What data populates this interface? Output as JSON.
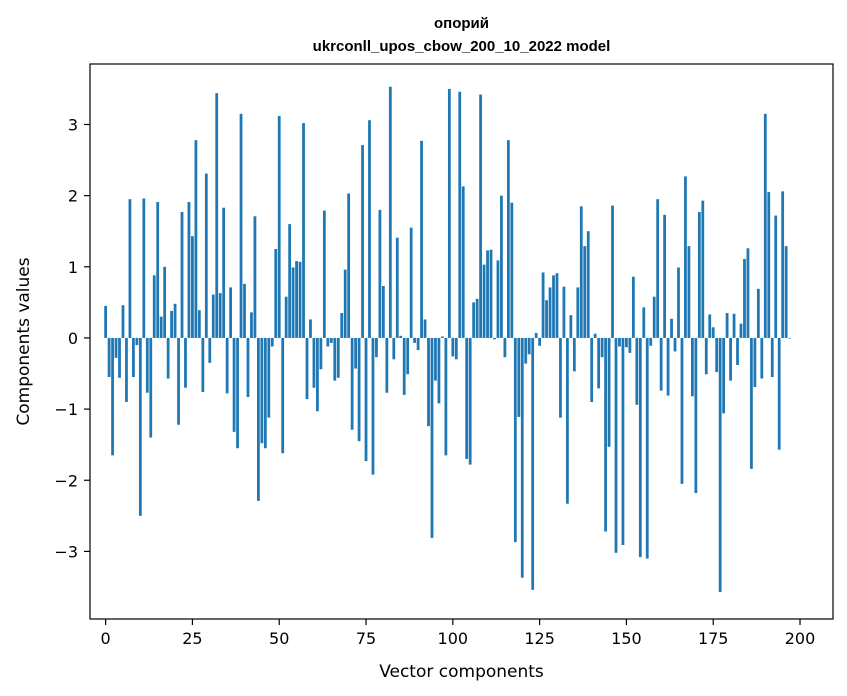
{
  "chart_data": {
    "type": "bar",
    "title": "опорий",
    "subtitle": "ukrconll_upos_cbow_200_10_2022 model",
    "xlabel": "Vector components",
    "ylabel": "Components values",
    "xlim": [
      -4.5,
      209.5
    ],
    "ylim": [
      -3.95,
      3.85
    ],
    "x_ticks": [
      0,
      25,
      50,
      75,
      100,
      125,
      150,
      175,
      200
    ],
    "x_tick_labels": [
      "0",
      "25",
      "50",
      "75",
      "100",
      "125",
      "150",
      "175",
      "200"
    ],
    "y_ticks": [
      -3,
      -2,
      -1,
      0,
      1,
      2,
      3
    ],
    "y_tick_labels": [
      "−3",
      "−2",
      "−1",
      "0",
      "1",
      "2",
      "3"
    ],
    "bar_color": "#1f77b4",
    "grid": false,
    "values": [
      0.45,
      -0.55,
      -1.65,
      -0.28,
      -0.56,
      0.46,
      -0.9,
      1.95,
      -0.55,
      -0.1,
      -2.5,
      1.96,
      -0.77,
      -1.4,
      0.88,
      1.91,
      0.3,
      1.0,
      -0.57,
      0.38,
      0.48,
      -1.22,
      1.77,
      -0.7,
      1.91,
      1.43,
      2.78,
      0.39,
      -0.76,
      2.31,
      -0.35,
      0.61,
      3.44,
      0.63,
      1.83,
      -0.78,
      0.71,
      -1.32,
      -1.55,
      3.15,
      0.76,
      -0.83,
      0.36,
      1.71,
      -2.29,
      -1.48,
      -1.55,
      -1.12,
      -0.12,
      1.25,
      3.12,
      -1.62,
      0.58,
      1.6,
      0.99,
      1.08,
      1.07,
      3.02,
      -0.86,
      0.26,
      -0.7,
      -1.03,
      -0.44,
      1.79,
      -0.12,
      -0.07,
      -0.6,
      -0.56,
      0.35,
      0.96,
      2.03,
      -1.29,
      -0.43,
      -1.45,
      2.71,
      -1.73,
      3.06,
      -1.92,
      -0.27,
      1.8,
      0.73,
      -0.77,
      3.53,
      -0.3,
      1.41,
      0.03,
      -0.8,
      -0.51,
      1.55,
      -0.07,
      -0.17,
      2.77,
      0.26,
      -1.24,
      -2.81,
      -0.6,
      -0.92,
      0.02,
      -1.65,
      3.5,
      -0.26,
      -0.3,
      3.46,
      2.13,
      -1.7,
      -1.78,
      0.5,
      0.55,
      3.42,
      1.03,
      1.23,
      1.24,
      -0.02,
      1.09,
      2.0,
      -0.27,
      2.78,
      1.9,
      -2.87,
      -1.11,
      -3.37,
      -0.36,
      -0.23,
      -3.54,
      0.07,
      -0.11,
      0.92,
      0.53,
      0.71,
      0.88,
      0.91,
      -1.12,
      0.72,
      -2.33,
      0.32,
      -0.47,
      0.71,
      1.85,
      1.29,
      1.5,
      -0.9,
      0.06,
      -0.71,
      -0.27,
      -2.72,
      -1.53,
      1.86,
      -3.02,
      -0.12,
      -2.91,
      -0.13,
      -0.21,
      0.86,
      -0.94,
      -3.08,
      0.43,
      -3.1,
      -0.11,
      0.58,
      1.95,
      -0.74,
      1.73,
      -0.81,
      0.27,
      -0.19,
      0.99,
      -2.05,
      2.27,
      1.29,
      -0.82,
      -2.18,
      1.77,
      1.93,
      -0.51,
      0.33,
      0.15,
      -0.48,
      -3.57,
      -1.06,
      0.35,
      -0.6,
      0.34,
      -0.38,
      0.2,
      1.11,
      1.26,
      -1.84,
      -0.69,
      0.69,
      -0.57,
      3.15,
      2.05,
      -0.55,
      1.72,
      -1.57,
      2.06,
      1.29,
      0.0
    ]
  }
}
